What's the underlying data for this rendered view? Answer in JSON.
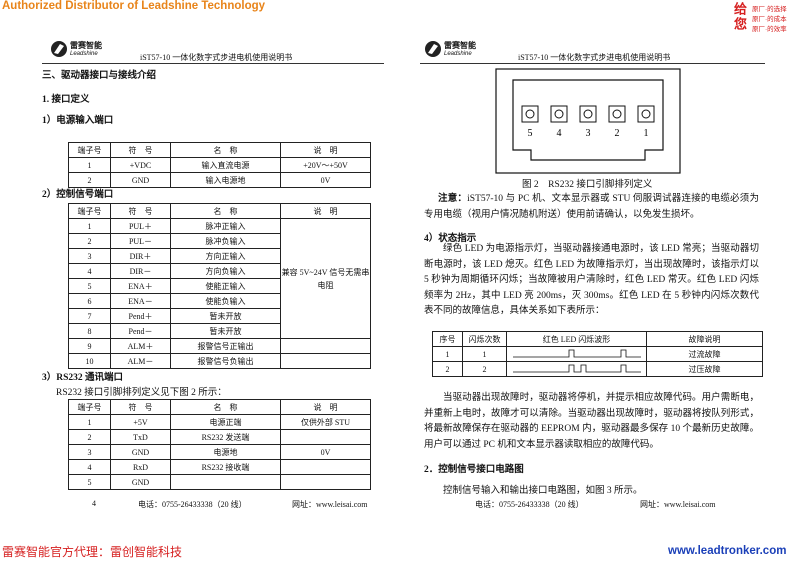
{
  "banner": {
    "distributor": "Authorized Distributor of Leadshine Technology",
    "slogan_mark": "给您",
    "slogan": [
      "原厂·的选择",
      "原厂·的成本",
      "原厂·的效率"
    ]
  },
  "left_page": {
    "logo": {
      "cn": "雷赛智能",
      "en": "Leadshine"
    },
    "header": "iST57-10 一体化数字式步进电机使用说明书",
    "section": "三、驱动器接口与接线介绍",
    "subsection": "1. 接口定义",
    "power_title": "1）电源输入端口",
    "power_table": {
      "headers": [
        "端子号",
        "符　号",
        "名　称",
        "说　明"
      ],
      "rows": [
        [
          "1",
          "+VDC",
          "输入直流电源",
          "+20V～+50V"
        ],
        [
          "2",
          "GND",
          "输入电源地",
          "0V"
        ]
      ]
    },
    "control_title": "2）控制信号端口",
    "control_table": {
      "headers": [
        "端子号",
        "符　号",
        "名　称",
        "说　明"
      ],
      "note": "兼容 5V~24V 信号无需串电阻",
      "rows": [
        [
          "1",
          "PUL＋",
          "脉冲正输入"
        ],
        [
          "2",
          "PUL－",
          "脉冲负输入"
        ],
        [
          "3",
          "DIR＋",
          "方向正输入"
        ],
        [
          "4",
          "DIR－",
          "方向负输入"
        ],
        [
          "5",
          "ENA＋",
          "使能正输入"
        ],
        [
          "6",
          "ENA－",
          "使能负输入"
        ],
        [
          "7",
          "Pend＋",
          "暂未开放"
        ],
        [
          "8",
          "Pend－",
          "暂未开放"
        ],
        [
          "9",
          "ALM＋",
          "报警信号正输出"
        ],
        [
          "10",
          "ALM－",
          "报警信号负输出"
        ]
      ]
    },
    "rs232_title": "3）RS232 通讯端口",
    "rs232_intro": "RS232 接口引脚排列定义见下图 2 所示：",
    "rs232_table": {
      "headers": [
        "端子号",
        "符　号",
        "名　称",
        "说　明"
      ],
      "rows": [
        [
          "1",
          "+5V",
          "电源正端",
          "仅供外部 STU"
        ],
        [
          "2",
          "TxD",
          "RS232 发送端",
          null
        ],
        [
          "3",
          "GND",
          "电源地",
          "0V"
        ],
        [
          "4",
          "RxD",
          "RS232 接收端",
          null
        ],
        [
          "5",
          "GND",
          null,
          null
        ]
      ]
    },
    "footer": {
      "page": "4",
      "phone": "电话：0755-26433338（20 线）",
      "web": "网址：www.leisai.com"
    }
  },
  "right_page": {
    "logo": {
      "cn": "雷赛智能",
      "en": "Leadshine"
    },
    "header": "iST57-10 一体化数字式步进电机使用说明书",
    "figure": {
      "pins": [
        "5",
        "4",
        "3",
        "2",
        "1"
      ],
      "caption": "图 2　RS232 接口引脚排列定义"
    },
    "note": {
      "label": "注意：",
      "text": "iST57-10 与 PC 机、文本显示器或 STU 伺服调试器连接的电缆必须为专用电缆（视用户情况随机附送）使用前请确认，以免发生损坏。"
    },
    "status_title": "4）状态指示",
    "status_text": "绿色 LED 为电源指示灯，当驱动器接通电源时，该 LED 常亮；当驱动器切断电源时，该 LED 熄灭。红色 LED 为故障指示灯，当出现故障时，该指示灯以 5 秒钟为周期循环闪烁；当故障被用户清除时，红色 LED 常灭。红色 LED 闪烁频率为 2Hz，其中 LED 亮 200ms，灭 300ms。红色 LED 在 5 秒钟内闪烁次数代表不同的故障信息，具体关系如下表所示：",
    "led_table": {
      "headers": [
        "序号",
        "闪烁次数",
        "红色 LED 闪烁波形",
        "故障说明"
      ],
      "rows": [
        [
          "1",
          "1",
          "过流故障"
        ],
        [
          "2",
          "2",
          "过压故障"
        ]
      ]
    },
    "fault_text": "当驱动器出现故障时，驱动器将停机，并提示相应故障代码。用户需断电，并重新上电时，故障才可以清除。当驱动器出现故障时，驱动器将按队列形式，将最新故障保存在驱动器的 EEPROM 内，驱动器最多保存 10 个最新历史故障。用户可以通过 PC 机和文本显示器读取相应的故障代码。",
    "circuit_title": "2．控制信号接口电路图",
    "circuit_text": "控制信号输入和输出接口电路图，如图 3 所示。",
    "footer": {
      "phone": "电话：0755-26433338（20 线）",
      "web": "网址：www.leisai.com"
    }
  },
  "bottom": {
    "agent": "雷赛智能官方代理：雷创智能科技",
    "site": "www.leadtronker.com"
  }
}
